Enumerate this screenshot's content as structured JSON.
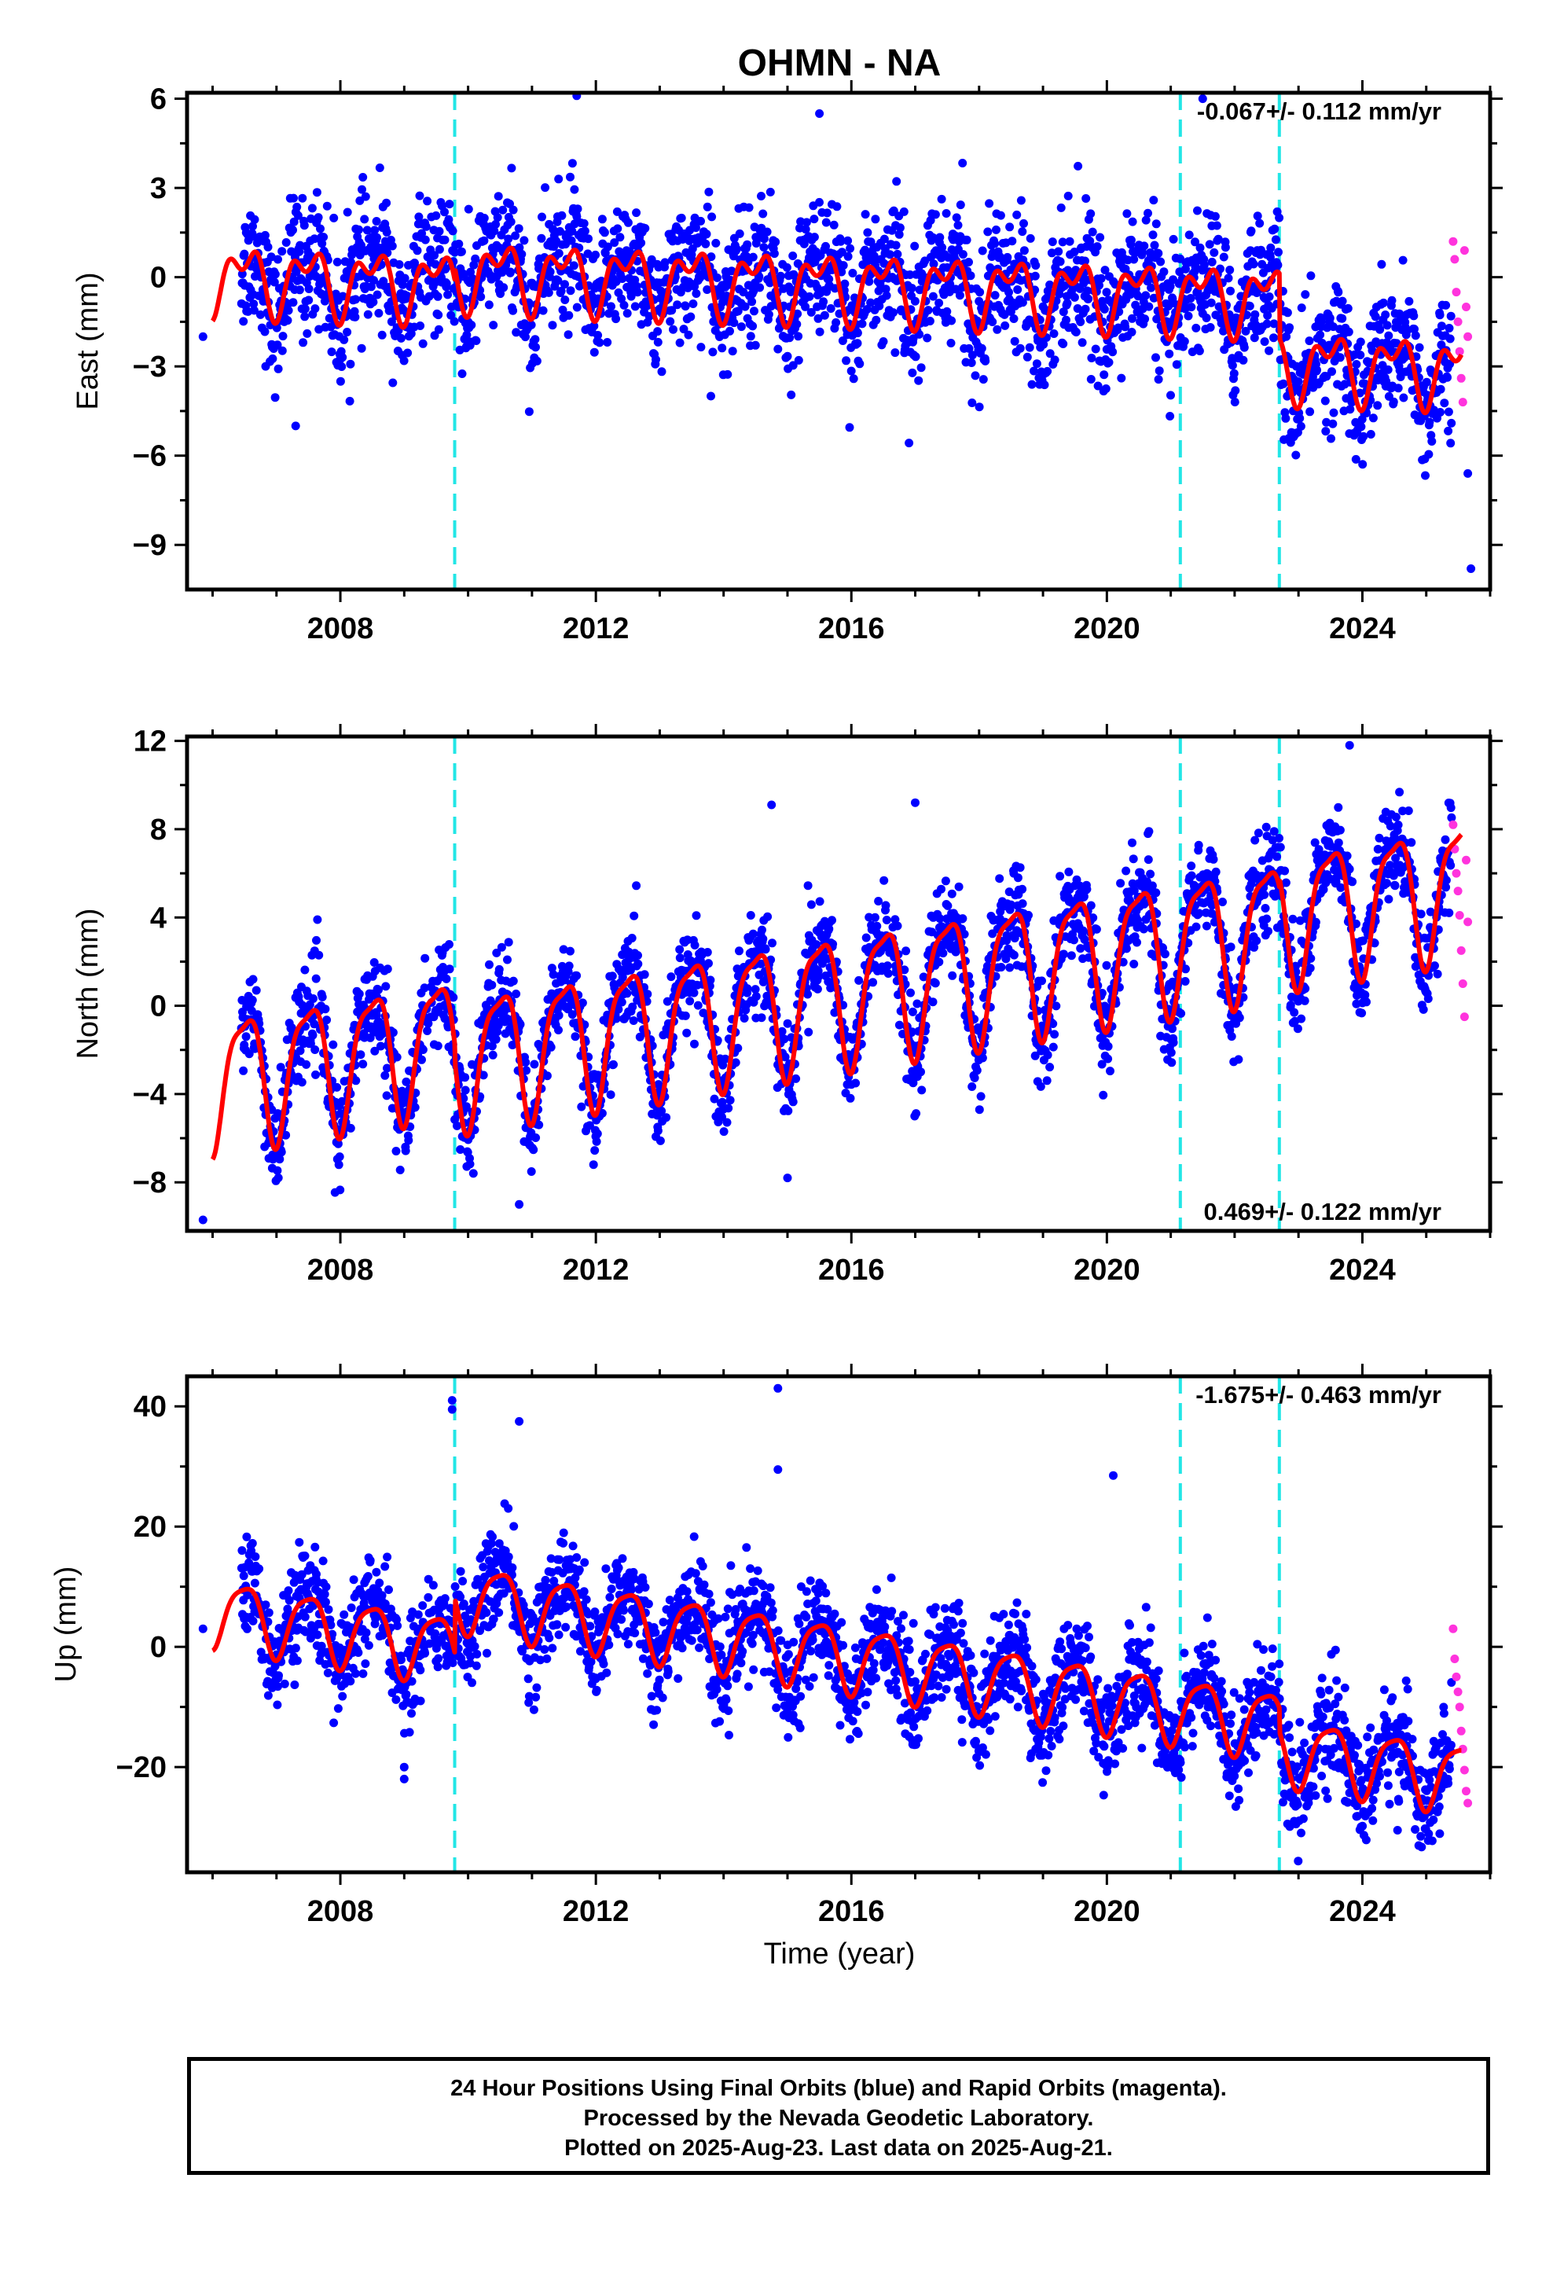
{
  "title": "OHMN - NA",
  "colors": {
    "final_orbits": "#0000ff",
    "rapid_orbits": "#ff33dd",
    "model": "#ff0000",
    "equipment_change": "#22e6e6",
    "frame": "#000000"
  },
  "xaxis": {
    "label": "Time (year)",
    "range": [
      2005.6,
      2026.0
    ],
    "major_ticks": [
      2008,
      2012,
      2016,
      2020,
      2024
    ],
    "tick_labels": [
      "2008",
      "2012",
      "2016",
      "2020",
      "2024"
    ],
    "minor_ticks": [
      2006,
      2007,
      2009,
      2010,
      2011,
      2013,
      2014,
      2015,
      2017,
      2018,
      2019,
      2021,
      2022,
      2023,
      2025,
      2026
    ]
  },
  "equipment_changes": [
    2009.79,
    2021.15,
    2022.7
  ],
  "chart_data": [
    {
      "type": "scatter",
      "component": "east",
      "ylabel": "East (mm)",
      "ylim": [
        -10.5,
        6.2
      ],
      "yticks": [
        6,
        3,
        0,
        -3,
        -6,
        -9
      ],
      "ytick_labels": [
        "6",
        "3",
        "0",
        "−3",
        "−6",
        "−9"
      ],
      "rate_text": "-0.067+/- 0.112 mm/yr",
      "rate_position": "top-right",
      "data_span": [
        2006.45,
        2025.4
      ],
      "model": {
        "mean_2006": 0.0,
        "slope": -0.067,
        "annual_amp": 0.9,
        "semiannual_amp": 0.6,
        "offsets": [
          {
            "year": 2009.79,
            "size": 0.4
          },
          {
            "year": 2022.7,
            "size": -2.2
          }
        ]
      },
      "scatter_sd": 1.1,
      "series": [
        {
          "values_note": "",
          "name": ""
        }
      ],
      "outliers": [
        [
          2005.85,
          -2.0
        ],
        [
          2007.3,
          -5.0
        ],
        [
          2011.7,
          6.1
        ],
        [
          2013.8,
          -4.0
        ],
        [
          2015.5,
          5.5
        ],
        [
          2021.5,
          6.0
        ],
        [
          2025.7,
          -9.8
        ],
        [
          2025.65,
          -6.6
        ]
      ],
      "rapid": {
        "span": [
          2025.42,
          2025.65
        ],
        "values": [
          1.2,
          0.6,
          -0.5,
          -1.5,
          -2.5,
          -3.4,
          -4.2,
          0.9,
          -1.0,
          -2.0
        ]
      }
    },
    {
      "type": "scatter",
      "component": "north",
      "ylabel": "North (mm)",
      "ylim": [
        -10.2,
        12.2
      ],
      "yticks": [
        12,
        8,
        4,
        0,
        -4,
        -8
      ],
      "ytick_labels": [
        "12",
        "8",
        "4",
        "0",
        "−4",
        "−8"
      ],
      "rate_text": "0.469+/- 0.122 mm/yr",
      "rate_position": "bottom-right",
      "data_span": [
        2006.45,
        2025.4
      ],
      "model": {
        "mean_2006": -3.3,
        "slope": 0.469,
        "annual_amp": 2.9,
        "semiannual_amp": 0.8,
        "offsets": [
          {
            "year": 2009.79,
            "size": -0.8
          },
          {
            "year": 2022.7,
            "size": 0.4
          }
        ]
      },
      "scatter_sd": 1.1,
      "outliers": [
        [
          2005.85,
          -9.7
        ],
        [
          2014.75,
          9.1
        ],
        [
          2010.8,
          -9.0
        ],
        [
          2017.0,
          9.2
        ],
        [
          2023.8,
          11.8
        ],
        [
          2015.0,
          -7.8
        ]
      ],
      "rapid": {
        "span": [
          2025.42,
          2025.65
        ],
        "values": [
          8.2,
          7.1,
          6.0,
          5.2,
          4.1,
          2.5,
          1.0,
          -0.5,
          6.6,
          3.8
        ]
      }
    },
    {
      "type": "scatter",
      "component": "up",
      "ylabel": "Up (mm)",
      "ylim": [
        -37.5,
        45.0
      ],
      "yticks": [
        40,
        20,
        0,
        -20
      ],
      "ytick_labels": [
        "40",
        "20",
        "0",
        "−20"
      ],
      "rate_text": "-1.675+/- 0.463 mm/yr",
      "rate_position": "top-right",
      "data_span": [
        2006.45,
        2025.4
      ],
      "model": {
        "mean_2006": 6.0,
        "slope": -1.675,
        "annual_amp": 5.5,
        "semiannual_amp": 1.2,
        "offsets": [
          {
            "year": 2009.79,
            "size": 9.0
          },
          {
            "year": 2022.7,
            "size": -4.0
          }
        ]
      },
      "scatter_sd": 4.2,
      "outliers": [
        [
          2005.85,
          3.0
        ],
        [
          2009.75,
          41.0
        ],
        [
          2009.75,
          39.5
        ],
        [
          2010.8,
          37.5
        ],
        [
          2014.85,
          43.0
        ],
        [
          2014.85,
          29.5
        ],
        [
          2020.1,
          28.5
        ],
        [
          2024.55,
          -30.5
        ],
        [
          2009.0,
          -22.0
        ],
        [
          2009.0,
          -20.0
        ]
      ],
      "rapid": {
        "span": [
          2025.42,
          2025.65
        ],
        "values": [
          3.0,
          -2.0,
          -5.0,
          -7.5,
          -10.0,
          -14.0,
          -17.0,
          -20.5,
          -24.0,
          -26.0
        ]
      }
    }
  ],
  "footer": {
    "line1": "24 Hour Positions Using Final Orbits (blue) and Rapid Orbits (magenta).",
    "line2": "Processed by the Nevada Geodetic Laboratory.",
    "line3": "Plotted on 2025-Aug-23. Last data on 2025-Aug-21."
  }
}
